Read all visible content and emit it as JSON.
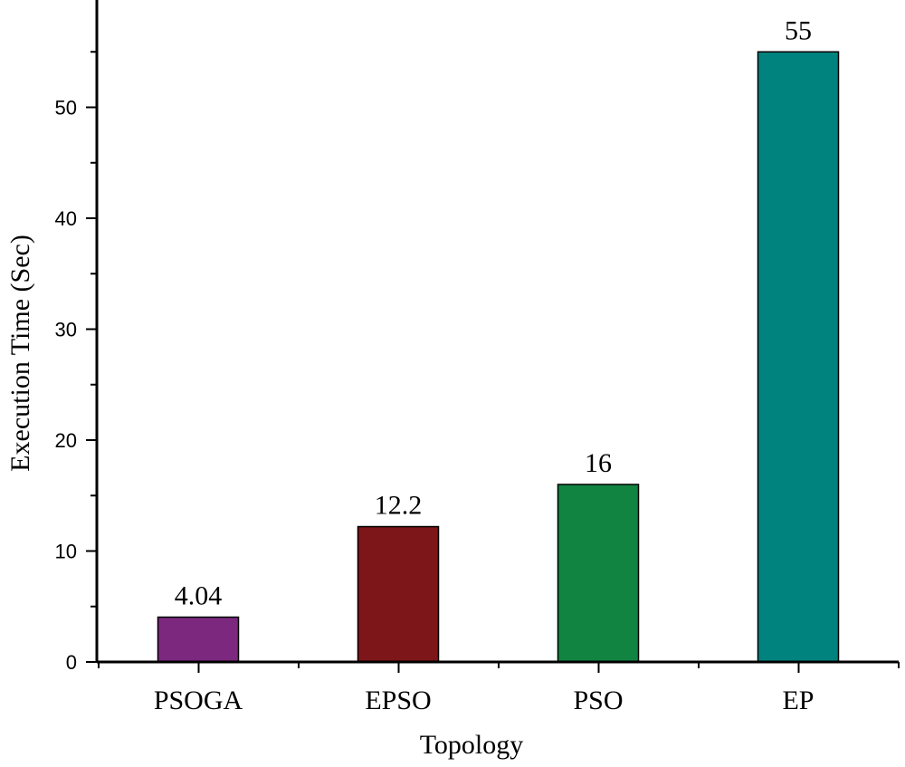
{
  "chart_data": {
    "type": "bar",
    "title": "",
    "xlabel": "Topology",
    "ylabel": "Execution Time (Sec)",
    "categories": [
      "PSOGA",
      "EPSO",
      "PSO",
      "EP"
    ],
    "values": [
      4.04,
      12.2,
      16,
      55
    ],
    "value_labels": [
      "4.04",
      "12.2",
      "16",
      "55"
    ],
    "colors": [
      "#7b287e",
      "#7d1618",
      "#128441",
      "#00837f"
    ],
    "ylim": [
      0,
      58
    ],
    "yticks": [
      0,
      10,
      20,
      30,
      40,
      50
    ],
    "grid": false,
    "legend": "none"
  }
}
